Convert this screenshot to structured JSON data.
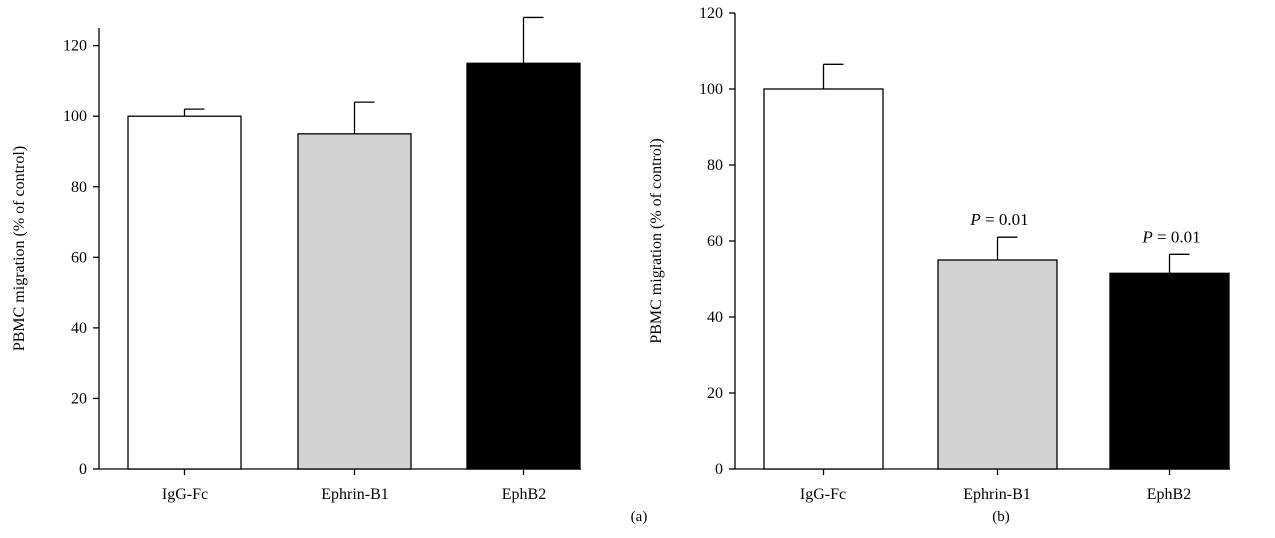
{
  "chart_data": [
    {
      "type": "bar",
      "panel_label": "(a)",
      "categories": [
        "IgG-Fc",
        "Ephrin-B1",
        "EphB2"
      ],
      "values": [
        100,
        95,
        115
      ],
      "error_upper": [
        102,
        104,
        128
      ],
      "bar_colors": [
        "#ffffff",
        "#d3d3d3",
        "#000000"
      ],
      "ylabel": "PBMC migration (% of control)",
      "ylim": [
        0,
        125
      ],
      "yticks": [
        0,
        20,
        40,
        60,
        80,
        100,
        120
      ],
      "annotations": [
        "",
        "",
        ""
      ],
      "grid": false
    },
    {
      "type": "bar",
      "panel_label": "(b)",
      "categories": [
        "IgG-Fc",
        "Ephrin-B1",
        "EphB2"
      ],
      "values": [
        100,
        55,
        51.5
      ],
      "error_upper": [
        106.5,
        61,
        56.5
      ],
      "bar_colors": [
        "#ffffff",
        "#d3d3d3",
        "#000000"
      ],
      "ylabel": "PBMC migration (% of control)",
      "ylim": [
        0,
        120
      ],
      "yticks": [
        0,
        20,
        40,
        60,
        80,
        100,
        120
      ],
      "annotations": [
        "",
        "P = 0.01",
        "P = 0.01"
      ],
      "grid": false
    }
  ]
}
